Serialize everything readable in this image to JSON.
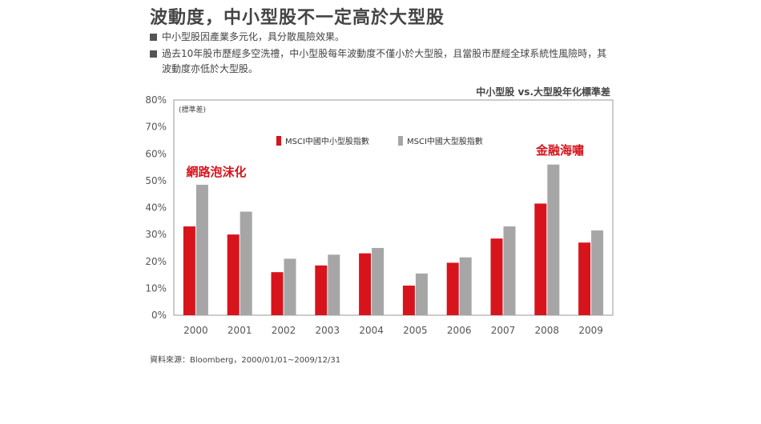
{
  "title": "波動度，中小型股不一定高於大型股",
  "bullets": [
    "中小型股因產業多元化，具分散風險效果。",
    "過去10年股市歷經多空洗禮，中小型股每年波動度不僅小於大型股，且當股市歷經全球系統性風險時，其波動度亦低於大型股。"
  ],
  "chart_heading": "中小型股 vs.大型股年化標準差",
  "source": "資料來源：Bloomberg，2000/01/01~2009/12/31",
  "colors": {
    "small_mid": "#d7141c",
    "large": "#a6a6a6",
    "annotation": "#d7141c",
    "frame": "#999999"
  },
  "chart_data": {
    "type": "bar",
    "ylabel": "(標準差)",
    "ylim": [
      0,
      80
    ],
    "yticks": [
      "0%",
      "10%",
      "20%",
      "30%",
      "40%",
      "50%",
      "60%",
      "70%",
      "80%"
    ],
    "categories": [
      "2000",
      "2001",
      "2002",
      "2003",
      "2004",
      "2005",
      "2006",
      "2007",
      "2008",
      "2009"
    ],
    "series": [
      {
        "name": "MSCI中國中小型股指數",
        "values": [
          33,
          30,
          16,
          18.5,
          23,
          11,
          19.5,
          28.5,
          41.5,
          27
        ]
      },
      {
        "name": "MSCI中國大型股指數",
        "values": [
          48.5,
          38.5,
          21,
          22.5,
          25,
          15.5,
          21.5,
          33,
          56,
          31.5
        ]
      }
    ],
    "grid": false,
    "legend_position": "top-center",
    "annotations": [
      {
        "text": "網路泡沫化",
        "category": "2000"
      },
      {
        "text": "金融海嘯",
        "category": "2008"
      }
    ]
  }
}
